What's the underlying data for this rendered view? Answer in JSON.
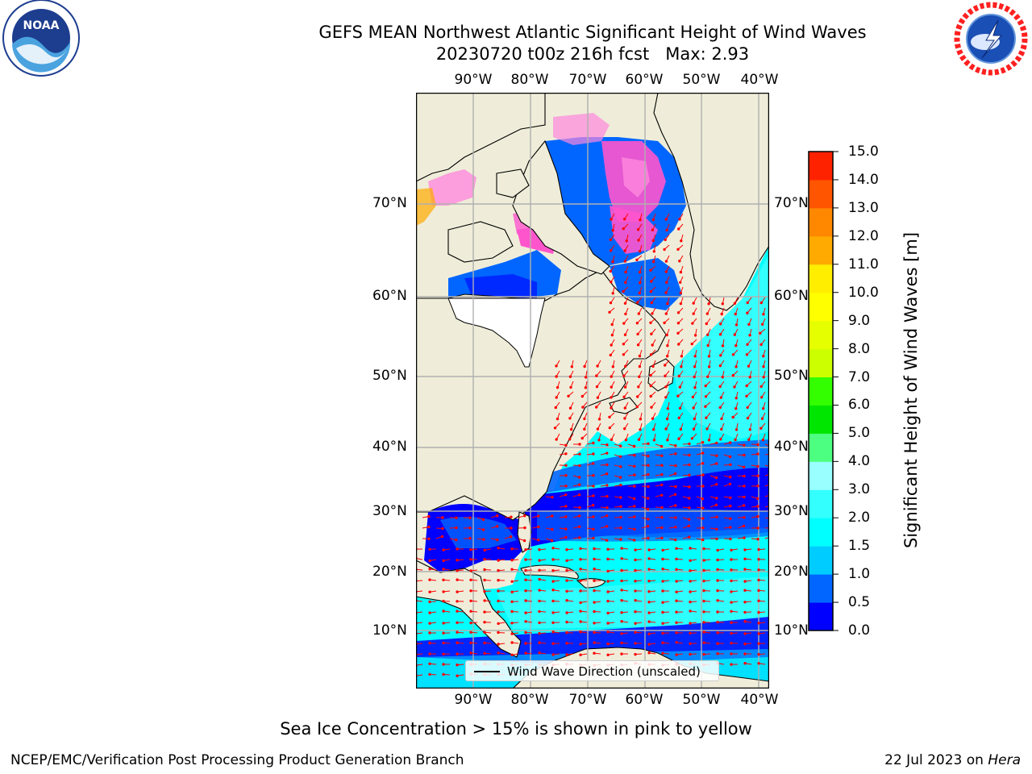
{
  "title": "GEFS MEAN Northwest Atlantic Significant Height of Wind Waves",
  "subtitle": "20230720 t00z 216h fcst   Max: 2.93",
  "lon_labels": [
    "90°W",
    "80°W",
    "70°W",
    "60°W",
    "50°W",
    "40°W"
  ],
  "lat_labels": [
    "70°N",
    "60°N",
    "50°N",
    "40°N",
    "30°N",
    "20°N",
    "10°N"
  ],
  "colorbar": {
    "label": "Significant Height of Wind Waves [m]",
    "ticks": [
      "0.0",
      "0.5",
      "1.0",
      "1.5",
      "2.0",
      "3.0",
      "4.0",
      "5.0",
      "6.0",
      "7.0",
      "8.0",
      "9.0",
      "10.0",
      "11.0",
      "12.0",
      "13.0",
      "14.0",
      "15.0"
    ],
    "colors": [
      "#0000ff",
      "#0066ff",
      "#00ccff",
      "#00ffff",
      "#33ffff",
      "#99ffff",
      "#4dff80",
      "#00e600",
      "#33ff00",
      "#ccff00",
      "#e6ff00",
      "#ffff00",
      "#ffee00",
      "#ffaa00",
      "#ff8800",
      "#ff5500",
      "#ff2200",
      "#ff0000"
    ]
  },
  "legend": {
    "label": "Wind Wave Direction (unscaled)"
  },
  "note": "Sea Ice Concentration > 15% is shown in pink to yellow",
  "credit": "NCEP/EMC/Verification Post Processing Product Generation Branch",
  "date": "22 Jul 2023 on ",
  "host": "Hera",
  "logos": {
    "left": "noaa-logo",
    "right": "nws-logo"
  },
  "colors": {
    "land": "#efedd9",
    "grid": "#b0b0b0",
    "arrows": "#ff0000"
  }
}
